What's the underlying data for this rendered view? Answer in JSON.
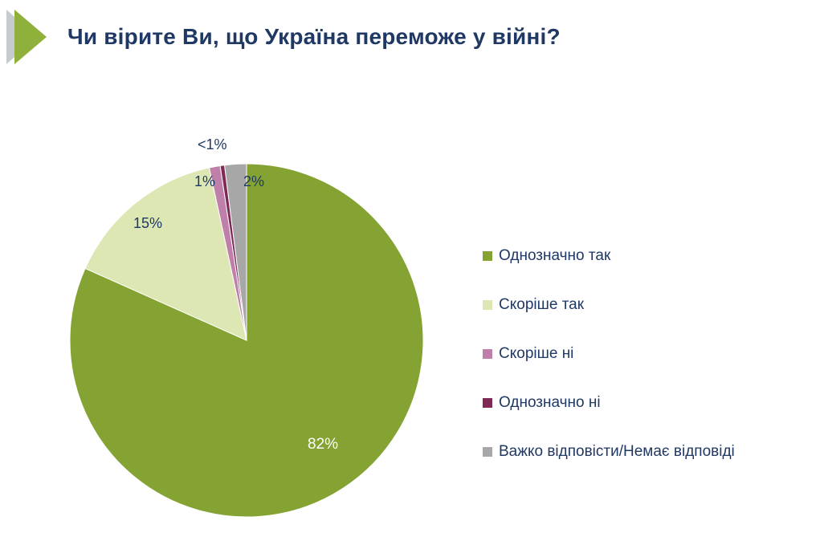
{
  "title": "Чи вірите Ви, що Україна переможе у війні?",
  "chart_data": {
    "type": "pie",
    "title": "Чи вірите Ви, що Україна переможе у війні?",
    "categories": [
      "Однозначно так",
      "Скоріше так",
      "Скоріше ні",
      "Однозначно ні",
      "Важко відповісти/Немає відповіді"
    ],
    "values": [
      82,
      15,
      1,
      0.4,
      2
    ],
    "data_labels": [
      "82%",
      "15%",
      "1%",
      "<1%",
      "2%"
    ],
    "colors": [
      "#84A333",
      "#DCE7B4",
      "#C07FAA",
      "#7E2A55",
      "#A7A7A7"
    ],
    "start_angle_deg": 0,
    "direction": "clockwise",
    "legend_position": "right",
    "label_color_inside": "#FFFFFF",
    "label_color_outside": "#1F3864",
    "title_color": "#1F3864",
    "bullet_colors": [
      "#C5CBCE",
      "#8FB03A"
    ]
  }
}
